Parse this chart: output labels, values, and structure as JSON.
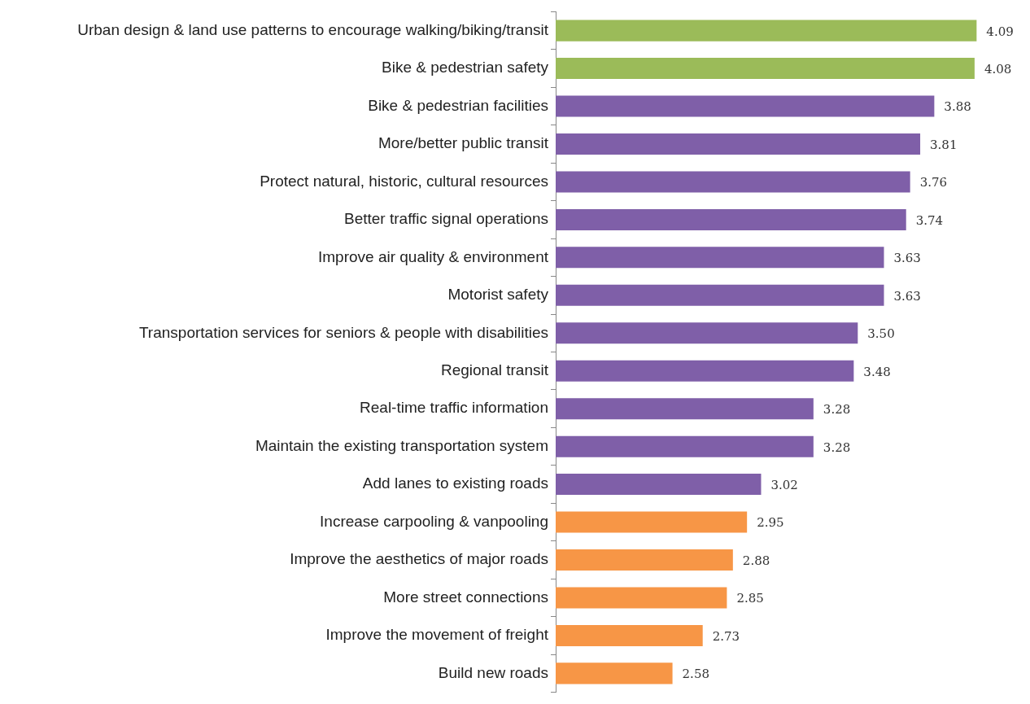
{
  "chart_data": {
    "type": "bar",
    "orientation": "horizontal",
    "tick_labels": "y",
    "grid": false,
    "legend": false,
    "categories": [
      "Urban design & land use patterns to encourage walking/biking/transit",
      "Bike & pedestrian safety",
      "Bike & pedestrian facilities",
      "More/better public transit",
      "Protect natural, historic, cultural resources",
      "Better traffic signal operations",
      "Improve air quality & environment",
      "Motorist safety",
      "Transportation services for seniors & people with disabilities",
      "Regional transit",
      "Real-time traffic information",
      "Maintain the existing transportation system",
      "Add lanes to existing roads",
      "Increase carpooling & vanpooling",
      "Improve the aesthetics of major roads",
      "More street connections",
      "Improve the movement of freight",
      "Build new roads"
    ],
    "values": [
      4.09,
      4.08,
      3.88,
      3.81,
      3.76,
      3.74,
      3.63,
      3.63,
      3.5,
      3.48,
      3.28,
      3.28,
      3.02,
      2.95,
      2.88,
      2.85,
      2.73,
      2.58
    ],
    "value_labels": [
      "4.09",
      "4.08",
      "3.88",
      "3.81",
      "3.76",
      "3.74",
      "3.63",
      "3.63",
      "3.50",
      "3.48",
      "3.28",
      "3.28",
      "3.02",
      "2.95",
      "2.88",
      "2.85",
      "2.73",
      "2.58"
    ],
    "colors": [
      "#9bbb59",
      "#9bbb59",
      "#7f5fa8",
      "#7f5fa8",
      "#7f5fa8",
      "#7f5fa8",
      "#7f5fa8",
      "#7f5fa8",
      "#7f5fa8",
      "#7f5fa8",
      "#7f5fa8",
      "#7f5fa8",
      "#7f5fa8",
      "#f79646",
      "#f79646",
      "#f79646",
      "#f79646",
      "#f79646"
    ]
  }
}
